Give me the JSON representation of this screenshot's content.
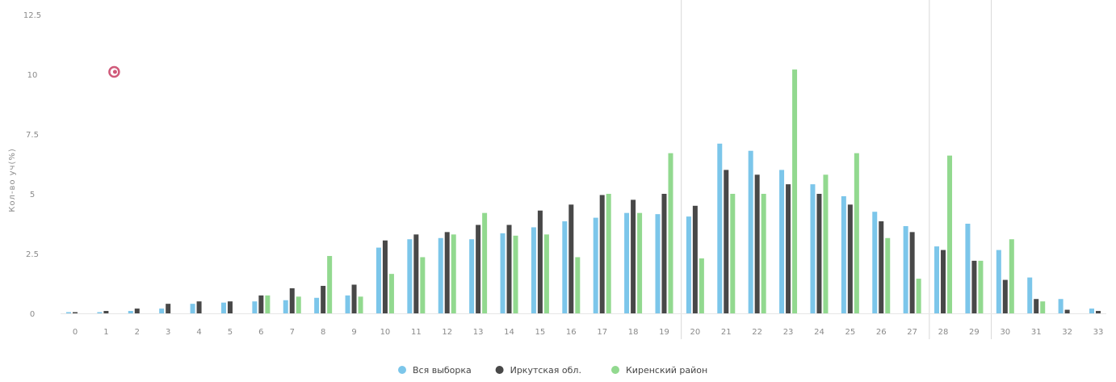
{
  "chart_data": {
    "type": "bar",
    "title": "",
    "xlabel": "",
    "ylabel": "Кол-во уч(%)",
    "ylim": [
      0,
      12.5
    ],
    "yticks": [
      "0",
      "2.5",
      "5",
      "7.5",
      "10",
      "12.5"
    ],
    "grid": false,
    "legend_position": "bottom",
    "categories": [
      "0",
      "1",
      "2",
      "3",
      "4",
      "5",
      "6",
      "7",
      "8",
      "9",
      "10",
      "11",
      "12",
      "13",
      "14",
      "15",
      "16",
      "17",
      "18",
      "19",
      "20",
      "21",
      "22",
      "23",
      "24",
      "25",
      "26",
      "27",
      "28",
      "29",
      "30",
      "31",
      "32",
      "33"
    ],
    "series": [
      {
        "name": "Вся выборка",
        "color": "#7cc6ea",
        "values": [
          0.05,
          0.05,
          0.1,
          0.2,
          0.4,
          0.45,
          0.5,
          0.55,
          0.65,
          0.75,
          2.75,
          3.1,
          3.15,
          3.1,
          3.35,
          3.6,
          3.85,
          4.0,
          4.2,
          4.15,
          4.05,
          7.1,
          6.8,
          6.0,
          5.4,
          4.9,
          4.25,
          3.65,
          2.8,
          3.75,
          2.65,
          1.5,
          0.6,
          0.2
        ]
      },
      {
        "name": "Иркутская обл.",
        "color": "#484848",
        "values": [
          0.05,
          0.1,
          0.2,
          0.4,
          0.5,
          0.5,
          0.75,
          1.05,
          1.15,
          1.2,
          3.05,
          3.3,
          3.4,
          3.7,
          3.7,
          4.3,
          4.55,
          4.95,
          4.75,
          5.0,
          4.5,
          6.0,
          5.8,
          5.4,
          5.0,
          4.55,
          3.85,
          3.4,
          2.65,
          2.2,
          1.4,
          0.6,
          0.15,
          0.1
        ]
      },
      {
        "name": "Киренский район",
        "color": "#92d98f",
        "values": [
          0,
          0,
          0,
          0,
          0,
          0,
          0.75,
          0.7,
          2.4,
          0.7,
          1.65,
          2.35,
          3.3,
          4.2,
          3.25,
          3.3,
          2.35,
          5.0,
          4.2,
          6.7,
          2.3,
          5.0,
          5.0,
          10.2,
          5.8,
          6.7,
          3.15,
          1.45,
          6.6,
          2.2,
          3.1,
          0.5,
          0,
          0
        ]
      }
    ],
    "annotations": [
      {
        "type": "marker",
        "x": "1",
        "y": 10.1,
        "color": "#d05a7a",
        "shape": "spiral"
      }
    ],
    "vertical_lines_at": [
      "20",
      "28",
      "30"
    ]
  }
}
